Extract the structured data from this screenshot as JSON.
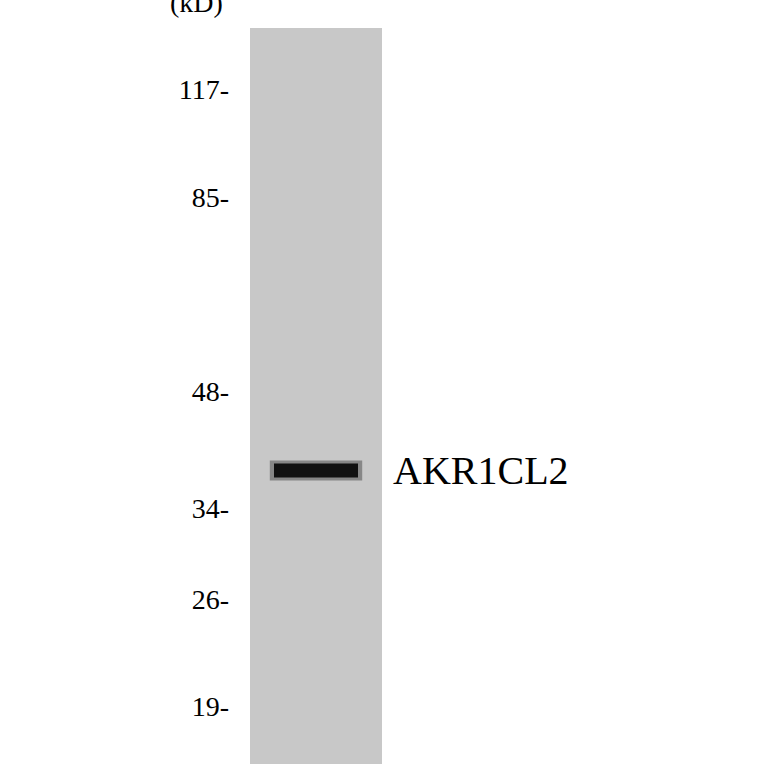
{
  "chart_data": {
    "type": "western_blot",
    "y_label": "(kD)",
    "log": "y",
    "ylim": [
      16,
      140
    ],
    "yticks": [
      {
        "value": 117,
        "label": "117-"
      },
      {
        "value": 85,
        "label": "85-"
      },
      {
        "value": 48,
        "label": "48-"
      },
      {
        "value": 34,
        "label": "34-"
      },
      {
        "value": 26,
        "label": "26-"
      },
      {
        "value": 19,
        "label": "19-"
      }
    ],
    "tick_labels": "y",
    "categories": [
      null
    ],
    "series": [
      {
        "name": "AKR1CL2",
        "color": "#111111",
        "values": [
          38
        ]
      }
    ]
  }
}
